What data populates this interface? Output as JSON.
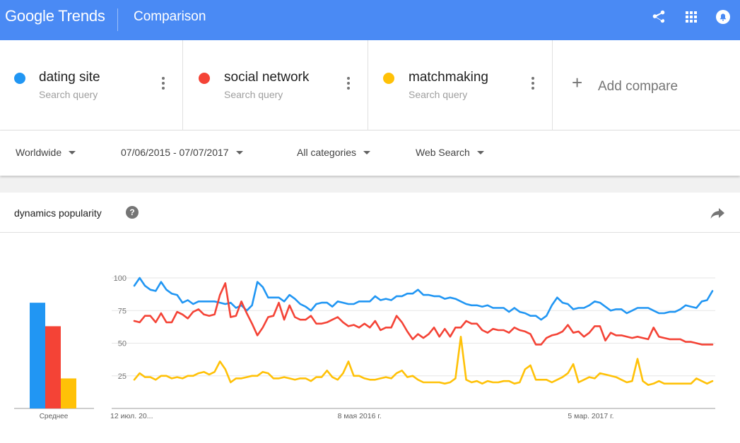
{
  "header": {
    "logo": "Google Trends",
    "title": "Comparison",
    "background": "#4a8af4"
  },
  "compare": {
    "terms": [
      {
        "term": "dating site",
        "subtitle": "Search query",
        "color": "#2196f3"
      },
      {
        "term": "social network",
        "subtitle": "Search query",
        "color": "#f44336"
      },
      {
        "term": "matchmaking",
        "subtitle": "Search query",
        "color": "#ffc107"
      }
    ],
    "add_label": "Add compare"
  },
  "filters": {
    "region": "Worldwide",
    "date_range": "07/06/2015 - 07/07/2017",
    "category": "All categories",
    "search_type": "Web Search"
  },
  "panel": {
    "title": "dynamics popularity",
    "help": "?"
  },
  "chart_data": [
    {
      "type": "bar",
      "categories": [
        "dating site",
        "social network",
        "matchmaking"
      ],
      "values": [
        81,
        63,
        23
      ],
      "colors": [
        "#2196f3",
        "#f44336",
        "#ffc107"
      ],
      "xlabel": "Среднее",
      "ylim": [
        0,
        100
      ]
    },
    {
      "type": "line",
      "ylim": [
        0,
        100
      ],
      "yticks": [
        25,
        50,
        75,
        100
      ],
      "grid": true,
      "x_tick_labels": [
        "12 июл. 20...",
        "8 мая 2016 г.",
        "5 мар. 2017 г."
      ],
      "x_tick_index": [
        0,
        43,
        86
      ],
      "series": [
        {
          "name": "dating site",
          "color": "#2196f3",
          "values": [
            94,
            100,
            94,
            91,
            90,
            97,
            91,
            88,
            87,
            81,
            83,
            80,
            82,
            82,
            82,
            82,
            81,
            80,
            81,
            77,
            79,
            75,
            79,
            97,
            93,
            85,
            85,
            85,
            82,
            87,
            84,
            80,
            78,
            75,
            80,
            81,
            81,
            78,
            82,
            81,
            80,
            80,
            82,
            82,
            82,
            86,
            83,
            84,
            83,
            86,
            86,
            88,
            88,
            91,
            87,
            87,
            86,
            86,
            84,
            85,
            84,
            82,
            80,
            79,
            79,
            78,
            79,
            77,
            77,
            77,
            74,
            77,
            74,
            73,
            71,
            71,
            68,
            71,
            79,
            85,
            81,
            80,
            76,
            77,
            77,
            79,
            82,
            81,
            78,
            75,
            76,
            76,
            73,
            75,
            77,
            77,
            77,
            75,
            73,
            73,
            74,
            74,
            76,
            79,
            78,
            77,
            82,
            83,
            90
          ]
        },
        {
          "name": "social network",
          "color": "#f44336",
          "values": [
            67,
            66,
            71,
            71,
            66,
            73,
            66,
            66,
            74,
            72,
            69,
            74,
            76,
            72,
            71,
            72,
            87,
            96,
            70,
            71,
            82,
            73,
            65,
            56,
            62,
            70,
            71,
            81,
            68,
            79,
            70,
            68,
            68,
            71,
            65,
            65,
            66,
            68,
            70,
            66,
            63,
            64,
            62,
            65,
            62,
            67,
            60,
            62,
            62,
            71,
            66,
            59,
            53,
            57,
            54,
            57,
            62,
            55,
            61,
            55,
            62,
            62,
            67,
            65,
            65,
            60,
            58,
            61,
            60,
            60,
            58,
            62,
            60,
            59,
            57,
            49,
            49,
            54,
            56,
            57,
            59,
            64,
            58,
            59,
            55,
            58,
            63,
            63,
            52,
            58,
            56,
            56,
            55,
            54,
            55,
            54,
            53,
            62,
            55,
            54,
            53,
            53,
            53,
            51,
            51,
            50,
            49,
            49,
            49
          ]
        },
        {
          "name": "matchmaking",
          "color": "#ffc107",
          "values": [
            22,
            27,
            24,
            24,
            22,
            25,
            25,
            23,
            24,
            23,
            25,
            25,
            27,
            28,
            26,
            28,
            36,
            30,
            20,
            23,
            23,
            24,
            25,
            25,
            28,
            27,
            23,
            23,
            24,
            23,
            22,
            23,
            23,
            21,
            24,
            24,
            29,
            24,
            22,
            27,
            36,
            25,
            25,
            23,
            22,
            22,
            23,
            24,
            23,
            27,
            29,
            24,
            25,
            22,
            20,
            20,
            20,
            20,
            19,
            20,
            23,
            55,
            22,
            20,
            21,
            19,
            21,
            20,
            20,
            21,
            21,
            19,
            20,
            30,
            33,
            22,
            22,
            22,
            20,
            22,
            24,
            27,
            34,
            20,
            22,
            24,
            23,
            27,
            26,
            25,
            24,
            22,
            20,
            21,
            38,
            21,
            18,
            19,
            21,
            19,
            19,
            19,
            19,
            19,
            19,
            23,
            21,
            19,
            21
          ]
        }
      ]
    }
  ]
}
